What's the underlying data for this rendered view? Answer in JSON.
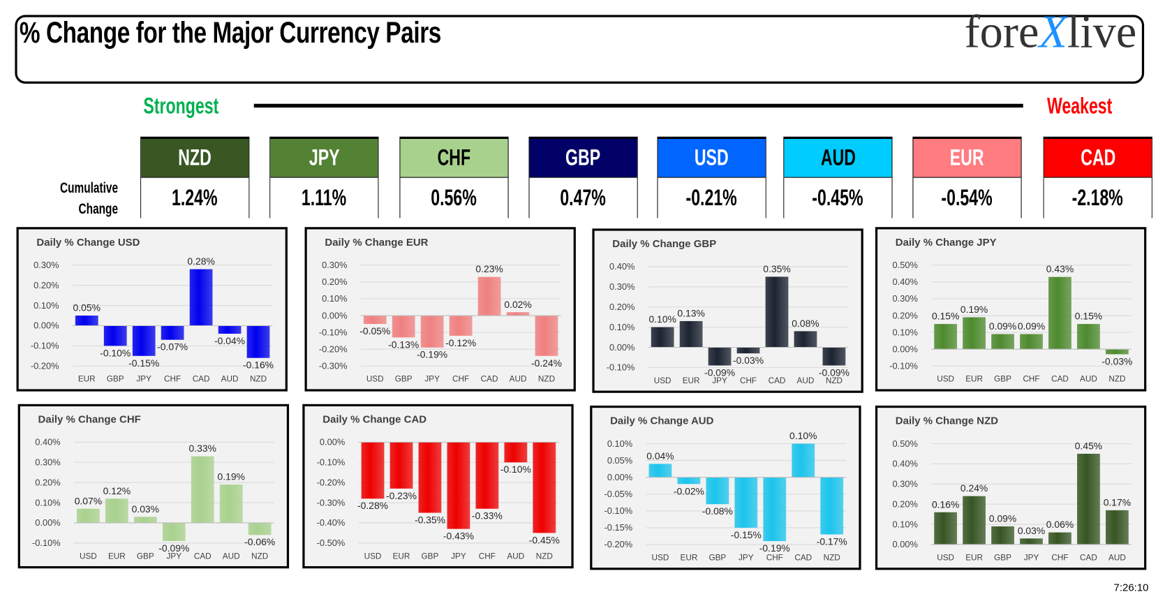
{
  "header": {
    "title": "% Change for the Major Currency Pairs",
    "logo": "forexlive"
  },
  "strength": {
    "strongest_label": "Strongest",
    "weakest_label": "Weakest",
    "cumulative_label_1": "Cumulative",
    "cumulative_label_2": "Change"
  },
  "currencies": [
    {
      "code": "NZD",
      "value": "1.24%",
      "color": "#385723",
      "text_color": "#ffffff"
    },
    {
      "code": "JPY",
      "value": "1.11%",
      "color": "#548235",
      "text_color": "#ffffff"
    },
    {
      "code": "CHF",
      "value": "0.56%",
      "color": "#a9d18e",
      "text_color": "#000000"
    },
    {
      "code": "GBP",
      "value": "0.47%",
      "color": "#000066",
      "text_color": "#ffffff"
    },
    {
      "code": "USD",
      "value": "-0.21%",
      "color": "#0066ff",
      "text_color": "#ffffff"
    },
    {
      "code": "AUD",
      "value": "-0.45%",
      "color": "#00ccff",
      "text_color": "#000000"
    },
    {
      "code": "EUR",
      "value": "-0.54%",
      "color": "#ff7c80",
      "text_color": "#ffffff"
    },
    {
      "code": "CAD",
      "value": "-2.18%",
      "color": "#ff0000",
      "text_color": "#ffffff"
    }
  ],
  "timestamp": "7:26:10",
  "chart_data": [
    {
      "type": "bar",
      "title": "Daily % Change USD",
      "color": "#0000ee",
      "categories": [
        "EUR",
        "GBP",
        "JPY",
        "CHF",
        "CAD",
        "AUD",
        "NZD"
      ],
      "values": [
        0.05,
        -0.1,
        -0.15,
        -0.07,
        0.28,
        -0.04,
        -0.16
      ],
      "labels": [
        "0.05%",
        "-0.10%",
        "-0.15%",
        "-0.07%",
        "0.28%",
        "-0.04%",
        "-0.16%"
      ],
      "ylim": [
        -0.2,
        0.3
      ],
      "yticks": [
        "-0.20%",
        "-0.10%",
        "0.00%",
        "0.10%",
        "0.20%",
        "0.30%"
      ],
      "grid": true
    },
    {
      "type": "bar",
      "title": "Daily % Change EUR",
      "color": "#f08080",
      "categories": [
        "USD",
        "GBP",
        "JPY",
        "CHF",
        "CAD",
        "AUD",
        "NZD"
      ],
      "values": [
        -0.05,
        -0.13,
        -0.19,
        -0.12,
        0.23,
        0.02,
        -0.24
      ],
      "labels": [
        "-0.05%",
        "-0.13%",
        "-0.19%",
        "-0.12%",
        "0.23%",
        "0.02%",
        "-0.24%"
      ],
      "ylim": [
        -0.3,
        0.3
      ],
      "yticks": [
        "-0.30%",
        "-0.20%",
        "-0.10%",
        "0.00%",
        "0.10%",
        "0.20%",
        "0.30%"
      ],
      "grid": true
    },
    {
      "type": "bar",
      "title": "Daily % Change GBP",
      "color": "#1c2331",
      "categories": [
        "USD",
        "EUR",
        "JPY",
        "CHF",
        "CAD",
        "AUD",
        "NZD"
      ],
      "values": [
        0.1,
        0.13,
        -0.09,
        -0.03,
        0.35,
        0.08,
        -0.09
      ],
      "labels": [
        "0.10%",
        "0.13%",
        "-0.09%",
        "-0.03%",
        "0.35%",
        "0.08%",
        "-0.09%"
      ],
      "ylim": [
        -0.1,
        0.4
      ],
      "yticks": [
        "-0.10%",
        "0.00%",
        "0.10%",
        "0.20%",
        "0.30%",
        "0.40%"
      ],
      "grid": true
    },
    {
      "type": "bar",
      "title": "Daily % Change JPY",
      "color": "#4e8a2e",
      "categories": [
        "USD",
        "EUR",
        "GBP",
        "CHF",
        "CAD",
        "AUD",
        "NZD"
      ],
      "values": [
        0.15,
        0.19,
        0.09,
        0.09,
        0.43,
        0.15,
        -0.03
      ],
      "labels": [
        "0.15%",
        "0.19%",
        "0.09%",
        "0.09%",
        "0.43%",
        "0.15%",
        "-0.03%"
      ],
      "ylim": [
        -0.1,
        0.5
      ],
      "yticks": [
        "-0.10%",
        "0.00%",
        "0.10%",
        "0.20%",
        "0.30%",
        "0.40%",
        "0.50%"
      ],
      "grid": true
    },
    {
      "type": "bar",
      "title": "Daily % Change CHF",
      "color": "#a9d18e",
      "categories": [
        "USD",
        "EUR",
        "GBP",
        "JPY",
        "CAD",
        "AUD",
        "NZD"
      ],
      "values": [
        0.07,
        0.12,
        0.03,
        -0.09,
        0.33,
        0.19,
        -0.06
      ],
      "labels": [
        "0.07%",
        "0.12%",
        "0.03%",
        "-0.09%",
        "0.33%",
        "0.19%",
        "-0.06%"
      ],
      "ylim": [
        -0.1,
        0.4
      ],
      "yticks": [
        "-0.10%",
        "0.00%",
        "0.10%",
        "0.20%",
        "0.30%",
        "0.40%"
      ],
      "grid": true
    },
    {
      "type": "bar",
      "title": "Daily % Change CAD",
      "color": "#ee0000",
      "categories": [
        "USD",
        "EUR",
        "GBP",
        "JPY",
        "CHF",
        "AUD",
        "NZD"
      ],
      "values": [
        -0.28,
        -0.23,
        -0.35,
        -0.43,
        -0.33,
        -0.1,
        -0.45
      ],
      "labels": [
        "-0.28%",
        "-0.23%",
        "-0.35%",
        "-0.43%",
        "-0.33%",
        "-0.10%",
        "-0.45%"
      ],
      "ylim": [
        -0.5,
        0.0
      ],
      "yticks": [
        "-0.50%",
        "-0.40%",
        "-0.30%",
        "-0.20%",
        "-0.10%",
        "0.00%"
      ],
      "grid": true
    },
    {
      "type": "bar",
      "title": "Daily % Change AUD",
      "color": "#1cc4ec",
      "categories": [
        "USD",
        "EUR",
        "GBP",
        "JPY",
        "CHF",
        "CAD",
        "NZD"
      ],
      "values": [
        0.04,
        -0.02,
        -0.08,
        -0.15,
        -0.19,
        0.1,
        -0.17
      ],
      "labels": [
        "0.04%",
        "-0.02%",
        "-0.08%",
        "-0.15%",
        "-0.19%",
        "0.10%",
        "-0.17%"
      ],
      "ylim": [
        -0.2,
        0.1
      ],
      "yticks": [
        "-0.20%",
        "-0.15%",
        "-0.10%",
        "-0.05%",
        "0.00%",
        "0.05%",
        "0.10%"
      ],
      "grid": true
    },
    {
      "type": "bar",
      "title": "Daily % Change NZD",
      "color": "#375623",
      "categories": [
        "USD",
        "EUR",
        "GBP",
        "JPY",
        "CHF",
        "CAD",
        "AUD"
      ],
      "values": [
        0.16,
        0.24,
        0.09,
        0.03,
        0.06,
        0.45,
        0.17
      ],
      "labels": [
        "0.16%",
        "0.24%",
        "0.09%",
        "0.03%",
        "0.06%",
        "0.45%",
        "0.17%"
      ],
      "ylim": [
        0.0,
        0.5
      ],
      "yticks": [
        "0.00%",
        "0.10%",
        "0.20%",
        "0.30%",
        "0.40%",
        "0.50%"
      ],
      "grid": true
    }
  ]
}
